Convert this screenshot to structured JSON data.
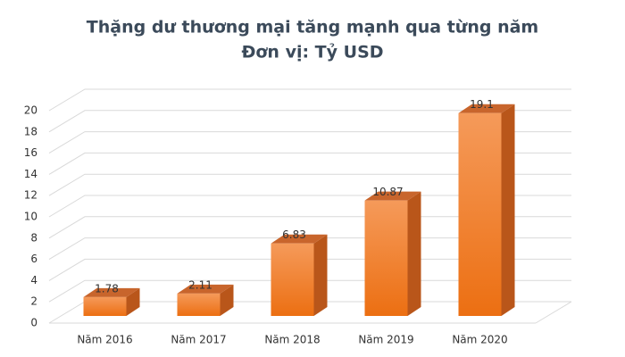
{
  "chart_data": {
    "type": "bar3d",
    "title": "Thặng dư thương mại tăng mạnh qua từng năm",
    "subtitle": "Đơn vị: Tỷ USD",
    "categories": [
      "Năm 2016",
      "Năm 2017",
      "Năm 2018",
      "Năm 2019",
      "Năm 2020"
    ],
    "values": [
      1.78,
      2.11,
      6.83,
      10.87,
      19.1
    ],
    "value_labels": [
      "1.78",
      "2.11",
      "6.83",
      "10.87",
      "19.1"
    ],
    "color": "#f07a22",
    "ylim": [
      0,
      20
    ],
    "yticks": [
      0,
      2,
      4,
      6,
      8,
      10,
      12,
      14,
      16,
      18,
      20
    ],
    "grid": true
  }
}
